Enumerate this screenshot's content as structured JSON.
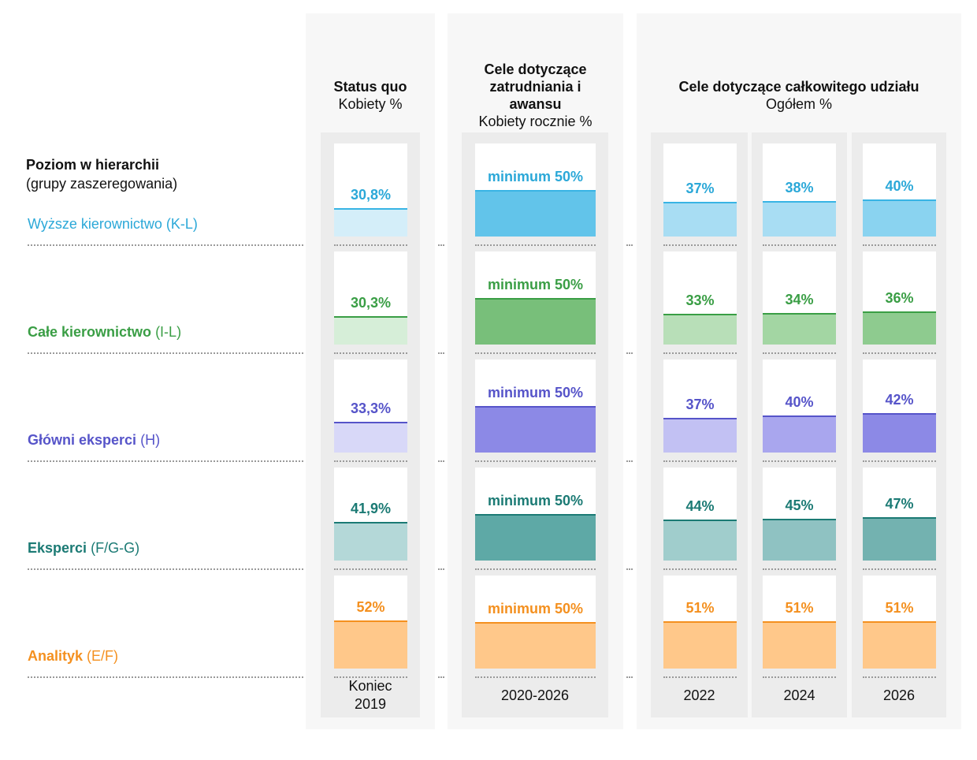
{
  "chart_data": {
    "type": "table",
    "row_header": {
      "title": "Poziom w hierarchii",
      "subtitle": "(grupy zaszeregowania)"
    },
    "rows": [
      {
        "name": "Wyższe kierownictwo",
        "grades": "(K-L)",
        "color": "#2ba8d8",
        "name_bold": false
      },
      {
        "name": "Całe kierownictwo",
        "grades": "(I-L)",
        "color": "#3a9e45",
        "name_bold": true
      },
      {
        "name": "Główni eksperci",
        "grades": "(H)",
        "color": "#5654c9",
        "name_bold": true
      },
      {
        "name": "Eksperci",
        "grades": "(F/G-G)",
        "color": "#1b7a74",
        "name_bold": true
      },
      {
        "name": "Analityk",
        "grades": "(E/F)",
        "color": "#f4901f",
        "name_bold": true
      }
    ],
    "groups": [
      {
        "title": "Status quo",
        "subtitle": "Kobiety %",
        "columns": [
          {
            "label": "Koniec\n2019",
            "values": [
              30.8,
              30.3,
              33.3,
              41.9,
              52
            ],
            "labels": [
              "30,8%",
              "30,3%",
              "33,3%",
              "41,9%",
              "52%"
            ]
          }
        ]
      },
      {
        "title": "Cele dotyczące zatrudniania i awansu",
        "subtitle": "Kobiety rocznie %",
        "columns": [
          {
            "label": "2020-2026",
            "values": [
              50,
              50,
              50,
              50,
              50
            ],
            "labels": [
              "minimum 50%",
              "minimum 50%",
              "minimum 50%",
              "minimum 50%",
              "minimum 50%"
            ]
          }
        ]
      },
      {
        "title": "Cele dotyczące całkowitego udziału",
        "subtitle": "Ogółem %",
        "columns": [
          {
            "label": "2022",
            "values": [
              37,
              33,
              37,
              44,
              51
            ],
            "labels": [
              "37%",
              "33%",
              "37%",
              "44%",
              "51%"
            ]
          },
          {
            "label": "2024",
            "values": [
              38,
              34,
              40,
              45,
              51
            ],
            "labels": [
              "38%",
              "34%",
              "40%",
              "45%",
              "51%"
            ]
          },
          {
            "label": "2026",
            "values": [
              40,
              36,
              42,
              47,
              51
            ],
            "labels": [
              "40%",
              "36%",
              "42%",
              "47%",
              "51%"
            ]
          }
        ]
      }
    ],
    "colors": {
      "fills": {
        "status": [
          "#d4eef9",
          "#d6eed8",
          "#d8d8f8",
          "#b4d8d8",
          "#ffc88a"
        ],
        "target": [
          "#62c4ea",
          "#78bf7a",
          "#8c89e6",
          "#5ea9a6",
          "#ffc88a"
        ],
        "y2022": [
          "#a8ddf3",
          "#b8dfb8",
          "#c2c1f3",
          "#a0cdcc",
          "#ffc88a"
        ],
        "y2024": [
          "#a8ddf3",
          "#a3d6a3",
          "#a9a6ee",
          "#8fc2c2",
          "#ffc88a"
        ],
        "y2026": [
          "#8ad3f0",
          "#8ecb8f",
          "#8c89e6",
          "#73b2b0",
          "#ffc88a"
        ]
      },
      "lines": [
        "#38b4e4",
        "#3a9e45",
        "#5654c9",
        "#1b7a74",
        "#f4901f"
      ]
    }
  }
}
